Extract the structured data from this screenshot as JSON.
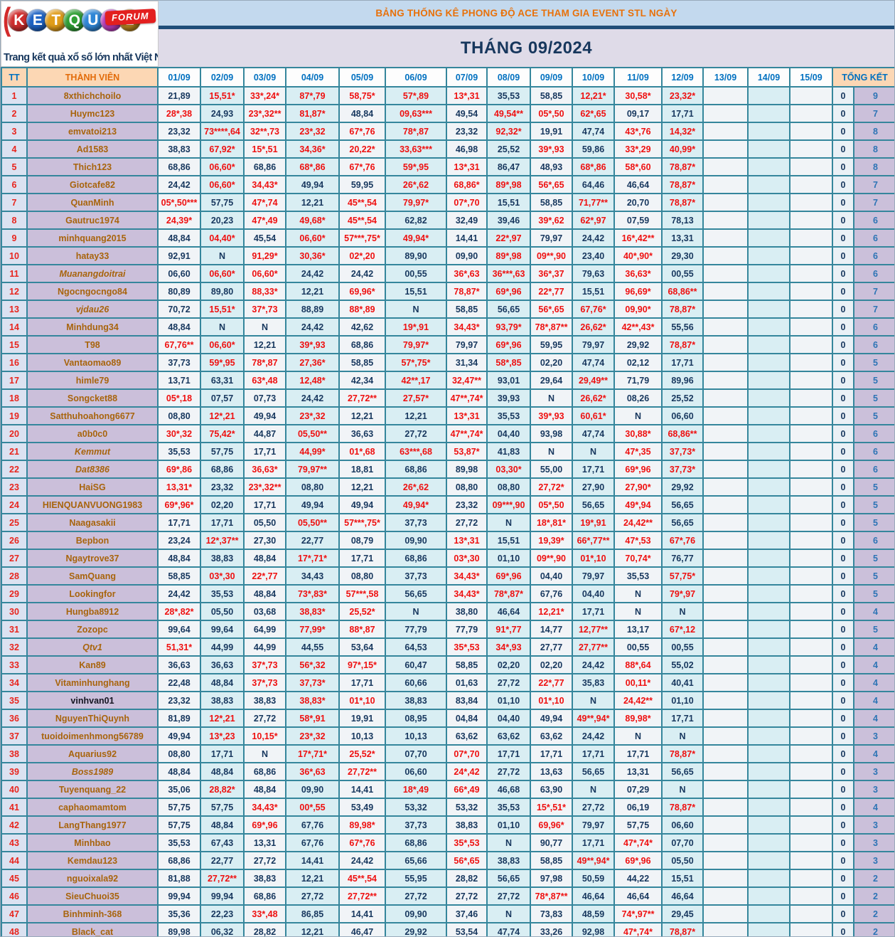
{
  "banner": {
    "title": "BẢNG THỐNG KÊ PHONG ĐỘ ACE THAM GIA EVENT STL NGÀY",
    "month_title": "THÁNG 09/2024"
  },
  "logo": {
    "letters": [
      {
        "ch": "K",
        "bg": "#cf2e2e"
      },
      {
        "ch": "E",
        "bg": "#1e63c4"
      },
      {
        "ch": "T",
        "bg": "#e09d1a"
      },
      {
        "ch": "Q",
        "bg": "#2e9e33"
      },
      {
        "ch": "U",
        "bg": "#2f86d6"
      },
      {
        "ch": "A",
        "bg": "#bb3cbb"
      },
      {
        "ch": "2",
        "bg": "#b5831f"
      }
    ],
    "forum": "FORUM",
    "tagline": "Trang kết quả xổ số lớn nhất Việt Nam"
  },
  "table": {
    "headers": {
      "tt": "TT",
      "member": "THÀNH VIÊN",
      "dates": [
        "01/09",
        "02/09",
        "03/09",
        "04/09",
        "05/09",
        "06/09",
        "07/09",
        "08/09",
        "09/09",
        "10/09",
        "11/09",
        "12/09",
        "13/09",
        "14/09",
        "15/09"
      ],
      "total": "TỔNG KẾT"
    },
    "rows": [
      {
        "n": 1,
        "name": "8xthichchoilo",
        "v": [
          "21,89",
          "15,51*",
          "33*,24*",
          "87*,79",
          "58,75*",
          "57*,89",
          "13*,31",
          "35,53",
          "58,85",
          "12,21*",
          "30,58*",
          "23,32*"
        ],
        "m": "011111100111",
        "z": "0",
        "t": "9"
      },
      {
        "n": 2,
        "name": "Huymc123",
        "v": [
          "28*,38",
          "24,93",
          "23*,32**",
          "81,87*",
          "48,84",
          "09,63***",
          "49,54",
          "49,54**",
          "05*,50",
          "62*,65",
          "09,17",
          "17,71"
        ],
        "m": "101101011100",
        "z": "0",
        "t": "7"
      },
      {
        "n": 3,
        "name": "emvatoi213",
        "v": [
          "23,32",
          "73****,64",
          "32**,73",
          "23*,32",
          "67*,76",
          "78*,87",
          "23,32",
          "92,32*",
          "19,91",
          "47,74",
          "43*,76",
          "14,32*"
        ],
        "m": "011111010011",
        "z": "0",
        "t": "8"
      },
      {
        "n": 4,
        "name": "Ad1583",
        "v": [
          "38,83",
          "67,92*",
          "15*,51",
          "34,36*",
          "20,22*",
          "33,63***",
          "46,98",
          "25,52",
          "39*,93",
          "59,86",
          "33*,29",
          "40,99*"
        ],
        "m": "011111001011",
        "z": "0",
        "t": "8"
      },
      {
        "n": 5,
        "name": "Thich123",
        "v": [
          "68,86",
          "06,60*",
          "68,86",
          "68*,86",
          "67*,76",
          "59*,95",
          "13*,31",
          "86,47",
          "48,93",
          "68*,86",
          "58*,60",
          "78,87*"
        ],
        "m": "010111100111",
        "z": "0",
        "t": "8"
      },
      {
        "n": 6,
        "name": "Giotcafe82",
        "v": [
          "24,42",
          "06,60*",
          "34,43*",
          "49,94",
          "59,95",
          "26*,62",
          "68,86*",
          "89*,98",
          "56*,65",
          "64,46",
          "46,64",
          "78,87*"
        ],
        "m": "011001111001",
        "z": "0",
        "t": "7"
      },
      {
        "n": 7,
        "name": "QuanMinh",
        "v": [
          "05*,50***",
          "57,75",
          "47*,74",
          "12,21",
          "45**,54",
          "79,97*",
          "07*,70",
          "15,51",
          "58,85",
          "71,77**",
          "20,70",
          "78,87*"
        ],
        "m": "101011100101",
        "z": "0",
        "t": "7"
      },
      {
        "n": 8,
        "name": "Gautruc1974",
        "v": [
          "24,39*",
          "20,23",
          "47*,49",
          "49,68*",
          "45**,54",
          "62,82",
          "32,49",
          "39,46",
          "39*,62",
          "62*,97",
          "07,59",
          "78,13"
        ],
        "m": "101110001100",
        "z": "0",
        "t": "6"
      },
      {
        "n": 9,
        "name": "minhquang2015",
        "v": [
          "48,84",
          "04,40*",
          "45,54",
          "06,60*",
          "57***,75*",
          "49,94*",
          "14,41",
          "22*,97",
          "79,97",
          "24,42",
          "16*,42**",
          "13,31"
        ],
        "m": "010111010010",
        "z": "0",
        "t": "6"
      },
      {
        "n": 10,
        "name": "hatay33",
        "v": [
          "92,91",
          "N",
          "91,29*",
          "30,36*",
          "02*,20",
          "89,90",
          "09,90",
          "89*,98",
          "09**,90",
          "23,40",
          "40*,90*",
          "29,30"
        ],
        "m": "001110011010",
        "z": "0",
        "t": "6"
      },
      {
        "n": 11,
        "name": "Muanangdoitrai",
        "it": 1,
        "v": [
          "06,60",
          "06,60*",
          "06,60*",
          "24,42",
          "24,42",
          "00,55",
          "36*,63",
          "36***,63",
          "36*,37",
          "79,63",
          "36,63*",
          "00,55"
        ],
        "m": "011000111010",
        "z": "0",
        "t": "6"
      },
      {
        "n": 12,
        "name": "Ngocngocngo84",
        "v": [
          "80,89",
          "89,80",
          "88,33*",
          "12,21",
          "69,96*",
          "15,51",
          "78,87*",
          "69*,96",
          "22*,77",
          "15,51",
          "96,69*",
          "68,86**"
        ],
        "m": "001010111011",
        "z": "0",
        "t": "7"
      },
      {
        "n": 13,
        "name": "vjdau26",
        "it": 1,
        "v": [
          "70,72",
          "15,51*",
          "37*,73",
          "88,89",
          "88*,89",
          "N",
          "58,85",
          "56,65",
          "56*,65",
          "67,76*",
          "09,90*",
          "78,87*"
        ],
        "m": "011010001111",
        "z": "0",
        "t": "7"
      },
      {
        "n": 14,
        "name": "Minhdung34",
        "v": [
          "48,84",
          "N",
          "N",
          "24,42",
          "42,62",
          "19*,91",
          "34,43*",
          "93,79*",
          "78*,87**",
          "26,62*",
          "42**,43*",
          "55,56"
        ],
        "m": "000001111110",
        "z": "0",
        "t": "6"
      },
      {
        "n": 15,
        "name": "T98",
        "v": [
          "67,76**",
          "06,60*",
          "12,21",
          "39*,93",
          "68,86",
          "79,97*",
          "79,97",
          "69*,96",
          "59,95",
          "79,97",
          "29,92",
          "78,87*"
        ],
        "m": "110101010001",
        "z": "0",
        "t": "6"
      },
      {
        "n": 16,
        "name": "Vantaomao89",
        "v": [
          "37,73",
          "59*,95",
          "78*,87",
          "27,36*",
          "58,85",
          "57*,75*",
          "31,34",
          "58*,85",
          "02,20",
          "47,74",
          "02,12",
          "17,71"
        ],
        "m": "011101010000",
        "z": "0",
        "t": "5"
      },
      {
        "n": 17,
        "name": "himle79",
        "v": [
          "13,71",
          "63,31",
          "63*,48",
          "12,48*",
          "42,34",
          "42**,17",
          "32,47**",
          "93,01",
          "29,64",
          "29,49**",
          "71,79",
          "89,96"
        ],
        "m": "001101100100",
        "z": "0",
        "t": "5"
      },
      {
        "n": 18,
        "name": "Songcket88",
        "v": [
          "05*,18",
          "07,57",
          "07,73",
          "24,42",
          "27,72**",
          "27,57*",
          "47**,74*",
          "39,93",
          "N",
          "26,62*",
          "08,26",
          "25,52"
        ],
        "m": "100011100100",
        "z": "0",
        "t": "5"
      },
      {
        "n": 19,
        "name": "Satthuhoahong6677",
        "v": [
          "08,80",
          "12*,21",
          "49,94",
          "23*,32",
          "12,21",
          "12,21",
          "13*,31",
          "35,53",
          "39*,93",
          "60,61*",
          "N",
          "06,60"
        ],
        "m": "010100101100",
        "z": "0",
        "t": "5"
      },
      {
        "n": 20,
        "name": "a0b0c0",
        "v": [
          "30*,32",
          "75,42*",
          "44,87",
          "05,50**",
          "36,63",
          "27,72",
          "47**,74*",
          "04,40",
          "93,98",
          "47,74",
          "30,88*",
          "68,86**"
        ],
        "m": "110100100011",
        "z": "0",
        "t": "6"
      },
      {
        "n": 21,
        "name": "Kemmut",
        "it": 1,
        "v": [
          "35,53",
          "57,75",
          "17,71",
          "44,99*",
          "01*,68",
          "63***,68",
          "53,87*",
          "41,83",
          "N",
          "N",
          "47*,35",
          "37,73*"
        ],
        "m": "000111100011",
        "z": "0",
        "t": "6"
      },
      {
        "n": 22,
        "name": "Dat8386",
        "it": 1,
        "v": [
          "69*,86",
          "68,86",
          "36,63*",
          "79,97**",
          "18,81",
          "68,86",
          "89,98",
          "03,30*",
          "55,00",
          "17,71",
          "69*,96",
          "37,73*"
        ],
        "m": "101100010011",
        "z": "0",
        "t": "6"
      },
      {
        "n": 23,
        "name": "HaiSG",
        "v": [
          "13,31*",
          "23,32",
          "23*,32**",
          "08,80",
          "12,21",
          "26*,62",
          "08,80",
          "08,80",
          "27,72*",
          "27,90",
          "27,90*",
          "29,92"
        ],
        "m": "101001001010",
        "z": "0",
        "t": "5"
      },
      {
        "n": 24,
        "name": "HIENQUANVUONG1983",
        "v": [
          "69*,96*",
          "02,20",
          "17,71",
          "49,94",
          "49,94",
          "49,94*",
          "23,32",
          "09***,90",
          "05*,50",
          "56,65",
          "49*,94",
          "56,65"
        ],
        "m": "100001011010",
        "z": "0",
        "t": "5"
      },
      {
        "n": 25,
        "name": "Naagasakii",
        "v": [
          "17,71",
          "17,71",
          "05,50",
          "05,50**",
          "57***,75*",
          "37,73",
          "27,72",
          "N",
          "18*,81*",
          "19*,91",
          "24,42**",
          "56,65"
        ],
        "m": "000110001110",
        "z": "0",
        "t": "5"
      },
      {
        "n": 26,
        "name": "Bepbon",
        "v": [
          "23,24",
          "12*,37**",
          "27,30",
          "22,77",
          "08,79",
          "09,90",
          "13*,31",
          "15,51",
          "19,39*",
          "66*,77**",
          "47*,53",
          "67*,76"
        ],
        "m": "010000101111",
        "z": "0",
        "t": "6"
      },
      {
        "n": 27,
        "name": "Ngaytrove37",
        "v": [
          "48,84",
          "38,83",
          "48,84",
          "17*,71*",
          "17,71",
          "68,86",
          "03*,30",
          "01,10",
          "09**,90",
          "01*,10",
          "70,74*",
          "76,77"
        ],
        "m": "000100101110",
        "z": "0",
        "t": "5"
      },
      {
        "n": 28,
        "name": "SamQuang",
        "v": [
          "58,85",
          "03*,30",
          "22*,77",
          "34,43",
          "08,80",
          "37,73",
          "34,43*",
          "69*,96",
          "04,40",
          "79,97",
          "35,53",
          "57,75*"
        ],
        "m": "011000110001",
        "z": "0",
        "t": "5"
      },
      {
        "n": 29,
        "name": "Lookingfor",
        "v": [
          "24,42",
          "35,53",
          "48,84",
          "73*,83*",
          "57***,58",
          "56,65",
          "34,43*",
          "78*,87*",
          "67,76",
          "04,40",
          "N",
          "79*,97"
        ],
        "m": "000110110001",
        "z": "0",
        "t": "5"
      },
      {
        "n": 30,
        "name": "Hungba8912",
        "v": [
          "28*,82*",
          "05,50",
          "03,68",
          "38,83*",
          "25,52*",
          "N",
          "38,80",
          "46,64",
          "12,21*",
          "17,71",
          "N",
          "N"
        ],
        "m": "100110001000",
        "z": "0",
        "t": "4"
      },
      {
        "n": 31,
        "name": "Zozopc",
        "v": [
          "99,64",
          "99,64",
          "64,99",
          "77,99*",
          "88*,87",
          "77,79",
          "77,79",
          "91*,77",
          "14,77",
          "12,77**",
          "13,17",
          "67*,12"
        ],
        "m": "000110010101",
        "z": "0",
        "t": "5"
      },
      {
        "n": 32,
        "name": "Qtv1",
        "it": 1,
        "v": [
          "51,31*",
          "44,99",
          "44,99",
          "44,55",
          "53,64",
          "64,53",
          "35*,53",
          "34*,93",
          "27,77",
          "27,77**",
          "00,55",
          "00,55"
        ],
        "m": "100000110100",
        "z": "0",
        "t": "4"
      },
      {
        "n": 33,
        "name": "Kan89",
        "v": [
          "36,63",
          "36,63",
          "37*,73",
          "56*,32",
          "97*,15*",
          "60,47",
          "58,85",
          "02,20",
          "02,20",
          "24,42",
          "88*,64",
          "55,02"
        ],
        "m": "001110000010",
        "z": "0",
        "t": "4"
      },
      {
        "n": 34,
        "name": "Vitaminhunghang",
        "v": [
          "22,48",
          "48,84",
          "37*,73",
          "37,73*",
          "17,71",
          "60,66",
          "01,63",
          "27,72",
          "22*,77",
          "35,83",
          "00,11*",
          "40,41"
        ],
        "m": "001100001010",
        "z": "0",
        "t": "4"
      },
      {
        "n": 35,
        "name": "vinhvan01",
        "dk": 1,
        "v": [
          "23,32",
          "38,83",
          "38,83",
          "38,83*",
          "01*,10",
          "38,83",
          "83,84",
          "01,10",
          "01*,10",
          "N",
          "24,42**",
          "01,10"
        ],
        "m": "000110001010",
        "z": "0",
        "t": "4"
      },
      {
        "n": 36,
        "name": "NguyenThiQuynh",
        "v": [
          "81,89",
          "12*,21",
          "27,72",
          "58*,91",
          "19,91",
          "08,95",
          "04,84",
          "04,40",
          "49,94",
          "49**,94*",
          "89,98*",
          "17,71"
        ],
        "m": "010100000110",
        "z": "0",
        "t": "4"
      },
      {
        "n": 37,
        "name": "tuoidoimenhmong56789",
        "v": [
          "49,94",
          "13*,23",
          "10,15*",
          "23*,32",
          "10,13",
          "10,13",
          "63,62",
          "63,62",
          "63,62",
          "24,42",
          "N",
          "N"
        ],
        "m": "011100000000",
        "z": "0",
        "t": "3"
      },
      {
        "n": 38,
        "name": "Aquarius92",
        "v": [
          "08,80",
          "17,71",
          "N",
          "17*,71*",
          "25,52*",
          "07,70",
          "07*,70",
          "17,71",
          "17,71",
          "17,71",
          "17,71",
          "78,87*"
        ],
        "m": "000110100001",
        "z": "0",
        "t": "4"
      },
      {
        "n": 39,
        "name": "Boss1989",
        "it": 1,
        "v": [
          "48,84",
          "48,84",
          "68,86",
          "36*,63",
          "27,72**",
          "06,60",
          "24*,42",
          "27,72",
          "13,63",
          "56,65",
          "13,31",
          "56,65"
        ],
        "m": "000110100000",
        "z": "0",
        "t": "3"
      },
      {
        "n": 40,
        "name": "Tuyenquang_22",
        "v": [
          "35,06",
          "28,82*",
          "48,84",
          "09,90",
          "14,41",
          "18*,49",
          "66*,49",
          "46,68",
          "63,90",
          "N",
          "07,29",
          "N"
        ],
        "m": "010001100000",
        "z": "0",
        "t": "3"
      },
      {
        "n": 41,
        "name": "caphaomamtom",
        "v": [
          "57,75",
          "57,75",
          "34,43*",
          "00*,55",
          "53,49",
          "53,32",
          "53,32",
          "35,53",
          "15*,51*",
          "27,72",
          "06,19",
          "78,87*"
        ],
        "m": "001100001001",
        "z": "0",
        "t": "4"
      },
      {
        "n": 42,
        "name": "LangThang1977",
        "v": [
          "57,75",
          "48,84",
          "69*,96",
          "67,76",
          "89,98*",
          "37,73",
          "38,83",
          "01,10",
          "69,96*",
          "79,97",
          "57,75",
          "06,60"
        ],
        "m": "001010001000",
        "z": "0",
        "t": "3"
      },
      {
        "n": 43,
        "name": "Minhbao",
        "v": [
          "35,53",
          "67,43",
          "13,31",
          "67,76",
          "67*,76",
          "68,86",
          "35*,53",
          "N",
          "90,77",
          "17,71",
          "47*,74*",
          "07,70"
        ],
        "m": "000010100010",
        "z": "0",
        "t": "3"
      },
      {
        "n": 44,
        "name": "Kemdau123",
        "v": [
          "68,86",
          "22,77",
          "27,72",
          "14,41",
          "24,42",
          "65,66",
          "56*,65",
          "38,83",
          "58,85",
          "49**,94*",
          "69*,96",
          "05,50"
        ],
        "m": "000000100110",
        "z": "0",
        "t": "3"
      },
      {
        "n": 45,
        "name": "nguoixala92",
        "v": [
          "81,88",
          "27,72**",
          "38,83",
          "12,21",
          "45**,54",
          "55,95",
          "28,82",
          "56,65",
          "97,98",
          "50,59",
          "44,22",
          "15,51"
        ],
        "m": "010010000000",
        "z": "0",
        "t": "2"
      },
      {
        "n": 46,
        "name": "SieuChuoi35",
        "v": [
          "99,94",
          "99,94",
          "68,86",
          "27,72",
          "27,72**",
          "27,72",
          "27,72",
          "27,72",
          "78*,87**",
          "46,64",
          "46,64",
          "46,64"
        ],
        "m": "000010001000",
        "z": "0",
        "t": "2"
      },
      {
        "n": 47,
        "name": "Binhminh-368",
        "v": [
          "35,36",
          "22,23",
          "33*,48",
          "86,85",
          "14,41",
          "09,90",
          "37,46",
          "N",
          "73,83",
          "48,59",
          "74*,97**",
          "29,45"
        ],
        "m": "001000000010",
        "z": "0",
        "t": "2"
      },
      {
        "n": 48,
        "name": "Black_cat",
        "v": [
          "89,98",
          "06,32",
          "28,82",
          "12,21",
          "46,47",
          "29,92",
          "53,54",
          "47,74",
          "33,26",
          "92,98",
          "47*,74*",
          "78,87*"
        ],
        "m": "000000000011",
        "z": "0",
        "t": "2"
      }
    ]
  }
}
